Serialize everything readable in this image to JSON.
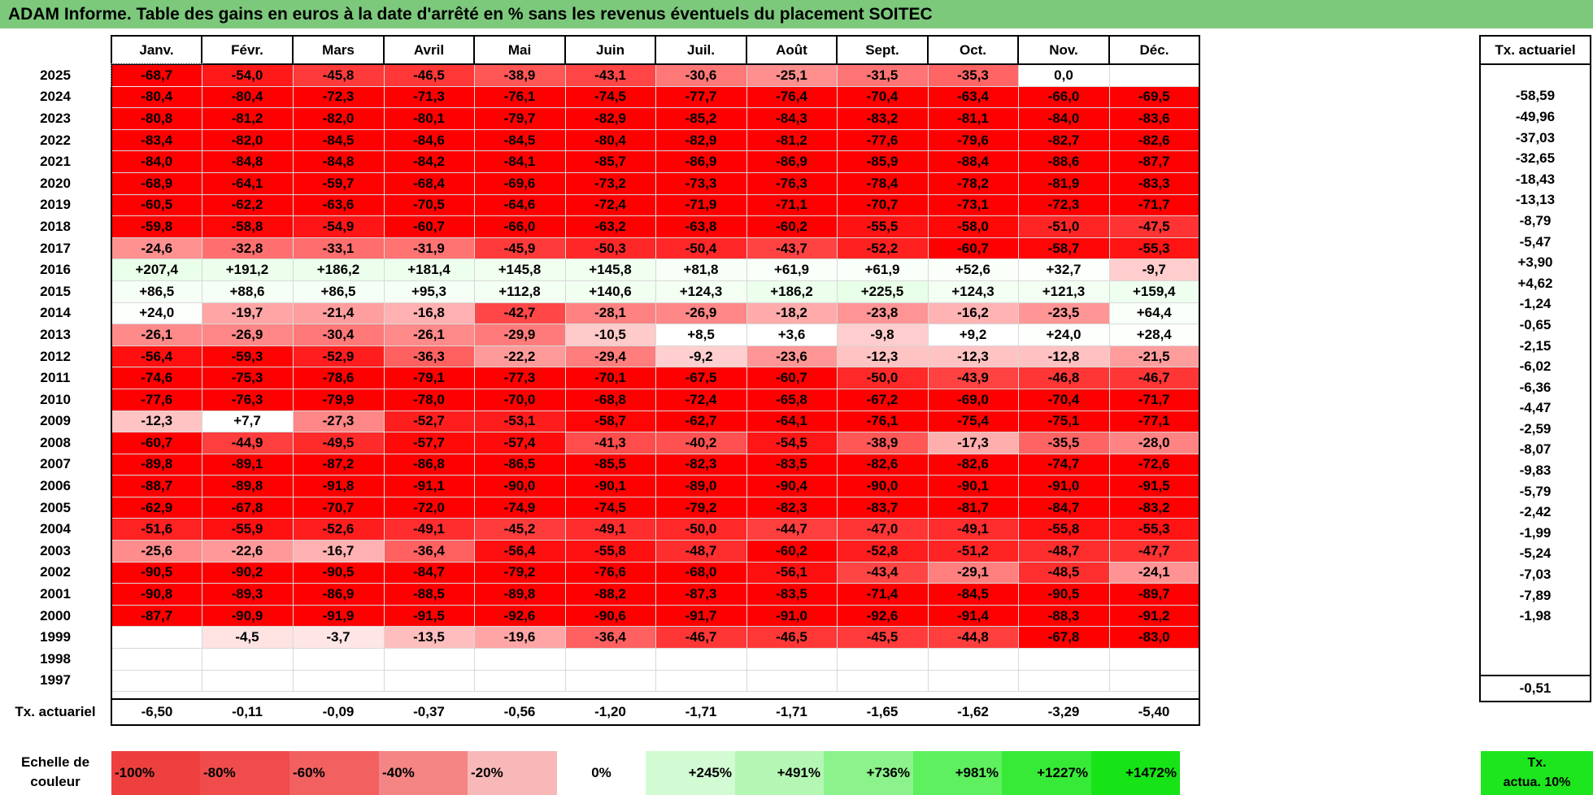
{
  "title": "ADAM Informe. Table des gains en euros à la date d'arrêté en % sans les revenus éventuels du placement SOITEC",
  "months": [
    "Janv.",
    "Févr.",
    "Mars",
    "Avril",
    "Mai",
    "Juin",
    "Juil.",
    "Août",
    "Sept.",
    "Oct.",
    "Nov.",
    "Déc."
  ],
  "actuarial_header": "Tx. actuariel",
  "rows": [
    {
      "year": "2025",
      "values": [
        "-68,7",
        "-54,0",
        "-45,8",
        "-46,5",
        "-38,9",
        "-43,1",
        "-30,6",
        "-25,1",
        "-31,5",
        "-35,3",
        "0,0",
        ""
      ],
      "rate": ""
    },
    {
      "year": "2024",
      "values": [
        "-80,4",
        "-80,4",
        "-72,3",
        "-71,3",
        "-76,1",
        "-74,5",
        "-77,7",
        "-76,4",
        "-70,4",
        "-63,4",
        "-66,0",
        "-69,5"
      ],
      "rate": "-58,59"
    },
    {
      "year": "2023",
      "values": [
        "-80,8",
        "-81,2",
        "-82,0",
        "-80,1",
        "-79,7",
        "-82,9",
        "-85,2",
        "-84,3",
        "-83,2",
        "-81,1",
        "-84,0",
        "-83,6"
      ],
      "rate": "-49,96"
    },
    {
      "year": "2022",
      "values": [
        "-83,4",
        "-82,0",
        "-84,5",
        "-84,6",
        "-84,5",
        "-80,4",
        "-82,9",
        "-81,2",
        "-77,6",
        "-79,6",
        "-82,7",
        "-82,6"
      ],
      "rate": "-37,03"
    },
    {
      "year": "2021",
      "values": [
        "-84,0",
        "-84,8",
        "-84,8",
        "-84,2",
        "-84,1",
        "-85,7",
        "-86,9",
        "-86,9",
        "-85,9",
        "-88,4",
        "-88,6",
        "-87,7"
      ],
      "rate": "-32,65"
    },
    {
      "year": "2020",
      "values": [
        "-68,9",
        "-64,1",
        "-59,7",
        "-68,4",
        "-69,6",
        "-73,2",
        "-73,3",
        "-76,3",
        "-78,4",
        "-78,2",
        "-81,9",
        "-83,3"
      ],
      "rate": "-18,43"
    },
    {
      "year": "2019",
      "values": [
        "-60,5",
        "-62,2",
        "-63,6",
        "-70,5",
        "-64,6",
        "-72,4",
        "-71,9",
        "-71,1",
        "-70,7",
        "-73,1",
        "-72,3",
        "-71,7"
      ],
      "rate": "-13,13"
    },
    {
      "year": "2018",
      "values": [
        "-59,8",
        "-58,8",
        "-54,9",
        "-60,7",
        "-66,0",
        "-63,2",
        "-63,8",
        "-60,2",
        "-55,5",
        "-58,0",
        "-51,0",
        "-47,5"
      ],
      "rate": "-8,79"
    },
    {
      "year": "2017",
      "values": [
        "-24,6",
        "-32,8",
        "-33,1",
        "-31,9",
        "-45,9",
        "-50,3",
        "-50,4",
        "-43,7",
        "-52,2",
        "-60,7",
        "-58,7",
        "-55,3"
      ],
      "rate": "-5,47"
    },
    {
      "year": "2016",
      "values": [
        "+207,4",
        "+191,2",
        "+186,2",
        "+181,4",
        "+145,8",
        "+145,8",
        "+81,8",
        "+61,9",
        "+61,9",
        "+52,6",
        "+32,7",
        "-9,7"
      ],
      "rate": "+3,90"
    },
    {
      "year": "2015",
      "values": [
        "+86,5",
        "+88,6",
        "+86,5",
        "+95,3",
        "+112,8",
        "+140,6",
        "+124,3",
        "+186,2",
        "+225,5",
        "+124,3",
        "+121,3",
        "+159,4"
      ],
      "rate": "+4,62"
    },
    {
      "year": "2014",
      "values": [
        "+24,0",
        "-19,7",
        "-21,4",
        "-16,8",
        "-42,7",
        "-28,1",
        "-26,9",
        "-18,2",
        "-23,8",
        "-16,2",
        "-23,5",
        "+64,4"
      ],
      "rate": "-1,24"
    },
    {
      "year": "2013",
      "values": [
        "-26,1",
        "-26,9",
        "-30,4",
        "-26,1",
        "-29,9",
        "-10,5",
        "+8,5",
        "+3,6",
        "-9,8",
        "+9,2",
        "+24,0",
        "+28,4"
      ],
      "rate": "-0,65"
    },
    {
      "year": "2012",
      "values": [
        "-56,4",
        "-59,3",
        "-52,9",
        "-36,3",
        "-22,2",
        "-29,4",
        "-9,2",
        "-23,6",
        "-12,3",
        "-12,3",
        "-12,8",
        "-21,5"
      ],
      "rate": "-2,15"
    },
    {
      "year": "2011",
      "values": [
        "-74,6",
        "-75,3",
        "-78,6",
        "-79,1",
        "-77,3",
        "-70,1",
        "-67,5",
        "-60,7",
        "-50,0",
        "-43,9",
        "-46,8",
        "-46,7"
      ],
      "rate": "-6,02"
    },
    {
      "year": "2010",
      "values": [
        "-77,6",
        "-76,3",
        "-79,9",
        "-78,0",
        "-70,0",
        "-68,8",
        "-72,4",
        "-65,8",
        "-67,2",
        "-69,0",
        "-70,4",
        "-71,7"
      ],
      "rate": "-6,36"
    },
    {
      "year": "2009",
      "values": [
        "-12,3",
        "+7,7",
        "-27,3",
        "-52,7",
        "-53,1",
        "-58,7",
        "-62,7",
        "-64,1",
        "-76,1",
        "-75,4",
        "-75,1",
        "-77,1"
      ],
      "rate": "-4,47"
    },
    {
      "year": "2008",
      "values": [
        "-60,7",
        "-44,9",
        "-49,5",
        "-57,7",
        "-57,4",
        "-41,3",
        "-40,2",
        "-54,5",
        "-38,9",
        "-17,3",
        "-35,5",
        "-28,0"
      ],
      "rate": "-2,59"
    },
    {
      "year": "2007",
      "values": [
        "-89,8",
        "-89,1",
        "-87,2",
        "-86,8",
        "-86,5",
        "-85,5",
        "-82,3",
        "-83,5",
        "-82,6",
        "-82,6",
        "-74,7",
        "-72,6"
      ],
      "rate": "-8,07"
    },
    {
      "year": "2006",
      "values": [
        "-88,7",
        "-89,8",
        "-91,8",
        "-91,1",
        "-90,0",
        "-90,1",
        "-89,0",
        "-90,4",
        "-90,0",
        "-90,1",
        "-91,0",
        "-91,5"
      ],
      "rate": "-9,83"
    },
    {
      "year": "2005",
      "values": [
        "-62,9",
        "-67,8",
        "-70,7",
        "-72,0",
        "-74,9",
        "-74,5",
        "-79,2",
        "-82,3",
        "-83,7",
        "-81,7",
        "-84,7",
        "-83,2"
      ],
      "rate": "-5,79"
    },
    {
      "year": "2004",
      "values": [
        "-51,6",
        "-55,9",
        "-52,6",
        "-49,1",
        "-45,2",
        "-49,1",
        "-50,0",
        "-44,7",
        "-47,0",
        "-49,1",
        "-55,8",
        "-55,3"
      ],
      "rate": "-2,42"
    },
    {
      "year": "2003",
      "values": [
        "-25,6",
        "-22,6",
        "-16,7",
        "-36,4",
        "-56,4",
        "-55,8",
        "-48,7",
        "-60,2",
        "-52,8",
        "-51,2",
        "-48,7",
        "-47,7"
      ],
      "rate": "-1,99"
    },
    {
      "year": "2002",
      "values": [
        "-90,5",
        "-90,2",
        "-90,5",
        "-84,7",
        "-79,2",
        "-76,6",
        "-68,0",
        "-56,1",
        "-43,4",
        "-29,1",
        "-48,5",
        "-24,1"
      ],
      "rate": "-5,24"
    },
    {
      "year": "2001",
      "values": [
        "-90,8",
        "-89,3",
        "-86,9",
        "-88,5",
        "-89,8",
        "-88,2",
        "-87,3",
        "-83,5",
        "-71,4",
        "-84,5",
        "-90,5",
        "-89,7"
      ],
      "rate": "-7,03"
    },
    {
      "year": "2000",
      "values": [
        "-87,7",
        "-90,9",
        "-91,9",
        "-91,5",
        "-92,6",
        "-90,6",
        "-91,7",
        "-91,0",
        "-92,6",
        "-91,4",
        "-88,3",
        "-91,2"
      ],
      "rate": "-7,89"
    },
    {
      "year": "1999",
      "values": [
        "",
        "-4,5",
        "-3,7",
        "-13,5",
        "-19,6",
        "-36,4",
        "-46,7",
        "-46,5",
        "-45,5",
        "-44,8",
        "-67,8",
        "-83,0"
      ],
      "rate": "-1,98"
    },
    {
      "year": "1998",
      "values": [
        "",
        "",
        "",
        "",
        "",
        "",
        "",
        "",
        "",
        "",
        "",
        ""
      ],
      "rate": ""
    },
    {
      "year": "1997",
      "values": [
        "",
        "",
        "",
        "",
        "",
        "",
        "",
        "",
        "",
        "",
        "",
        ""
      ],
      "rate": ""
    }
  ],
  "summary": {
    "label": "Tx. actuariel",
    "values": [
      "-6,50",
      "-0,11",
      "-0,09",
      "-0,37",
      "-0,56",
      "-1,20",
      "-1,71",
      "-1,71",
      "-1,65",
      "-1,62",
      "-3,29",
      "-5,40"
    ],
    "rate": "-0,51"
  },
  "scale": {
    "label_line1": "Echelle de",
    "label_line2": "couleur",
    "items": [
      {
        "label": "-100%",
        "color": "#ee3f3f"
      },
      {
        "label": "-80%",
        "color": "#f04c4c"
      },
      {
        "label": "-60%",
        "color": "#f26060"
      },
      {
        "label": "-40%",
        "color": "#f58484"
      },
      {
        "label": "-20%",
        "color": "#f9b8b8"
      },
      {
        "label": "0%",
        "color": "#ffffff"
      },
      {
        "label": "+245%",
        "color": "#d3fbd3"
      },
      {
        "label": "+491%",
        "color": "#b4f7b4"
      },
      {
        "label": "+736%",
        "color": "#8cf28c"
      },
      {
        "label": "+981%",
        "color": "#5ef05e"
      },
      {
        "label": "+1227%",
        "color": "#38ea38"
      },
      {
        "label": "+1472%",
        "color": "#16e416"
      }
    ],
    "right_line1": "Tx.",
    "right_line2": "actua. 10%"
  }
}
